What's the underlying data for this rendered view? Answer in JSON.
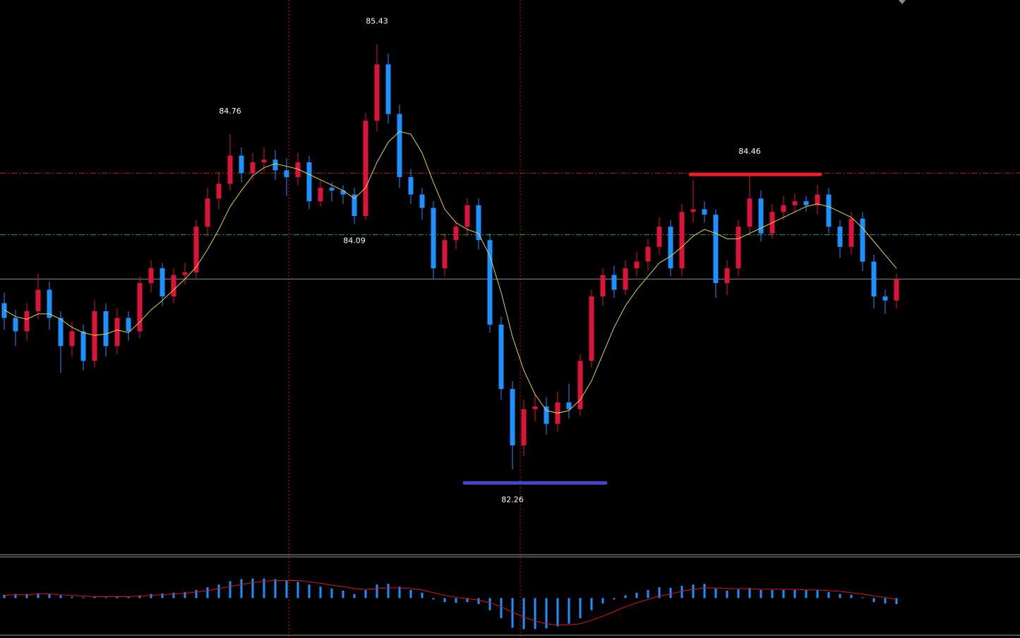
{
  "chart_data": {
    "type": "candlestick",
    "ylim": [
      81.63,
      85.76
    ],
    "bull_color": "#dc143c",
    "bear_color": "#1e90ff",
    "open": [
      83.5,
      83.39,
      83.29,
      83.44,
      83.6,
      83.39,
      83.18,
      83.29,
      83.07,
      83.44,
      83.18,
      83.39,
      83.29,
      83.65,
      83.76,
      83.55,
      83.71,
      83.73,
      84.07,
      84.28,
      84.39,
      84.6,
      84.47,
      84.55,
      84.57,
      84.49,
      84.44,
      84.55,
      84.26,
      84.36,
      84.34,
      84.31,
      84.15,
      84.86,
      85.28,
      84.91,
      84.44,
      84.31,
      84.21,
      83.76,
      83.97,
      84.07,
      84.23,
      83.97,
      83.34,
      82.86,
      82.44,
      82.71,
      82.73,
      82.6,
      82.76,
      82.71,
      83.07,
      83.55,
      83.71,
      83.6,
      83.76,
      83.81,
      83.92,
      84.07,
      83.76,
      84.18,
      84.2,
      84.16,
      83.65,
      83.76,
      84.07,
      84.28,
      84.02,
      84.18,
      84.23,
      84.26,
      84.23,
      84.31,
      84.07,
      83.92,
      84.13,
      83.81,
      83.55,
      83.52
    ],
    "high": [
      83.58,
      83.45,
      83.5,
      83.72,
      83.66,
      83.44,
      83.36,
      83.34,
      83.52,
      83.5,
      83.46,
      83.44,
      83.7,
      83.82,
      83.8,
      83.76,
      83.8,
      84.12,
      84.36,
      84.48,
      84.76,
      84.66,
      84.62,
      84.66,
      84.64,
      84.58,
      84.62,
      84.6,
      84.42,
      84.4,
      84.38,
      84.36,
      84.92,
      85.43,
      85.36,
      84.98,
      84.5,
      84.36,
      84.26,
      84.02,
      84.12,
      84.28,
      84.28,
      84.02,
      83.4,
      82.92,
      82.78,
      82.82,
      82.8,
      82.84,
      82.9,
      83.12,
      83.6,
      83.76,
      83.78,
      83.82,
      83.88,
      83.98,
      84.14,
      84.12,
      84.24,
      84.42,
      84.26,
      84.2,
      83.82,
      84.12,
      84.46,
      84.34,
      84.24,
      84.3,
      84.32,
      84.3,
      84.38,
      84.36,
      84.12,
      84.18,
      84.18,
      83.86,
      83.6,
      83.72
    ],
    "low": [
      83.3,
      83.18,
      83.22,
      83.38,
      83.3,
      82.98,
      83.1,
      83.0,
      83.02,
      83.1,
      83.12,
      83.22,
      83.24,
      83.58,
      83.48,
      83.5,
      83.64,
      83.68,
      84.0,
      84.2,
      84.34,
      84.4,
      84.42,
      84.48,
      84.42,
      84.3,
      84.38,
      84.2,
      84.22,
      84.26,
      84.24,
      84.09,
      84.12,
      84.78,
      84.84,
      84.36,
      84.24,
      84.12,
      83.68,
      83.7,
      83.9,
      84.0,
      83.9,
      83.28,
      82.78,
      82.26,
      82.36,
      82.62,
      82.52,
      82.54,
      82.64,
      82.66,
      83.02,
      83.48,
      83.54,
      83.56,
      83.7,
      83.74,
      83.86,
      83.7,
      83.7,
      84.1,
      84.1,
      83.54,
      83.56,
      83.7,
      84.02,
      83.96,
      83.98,
      84.12,
      84.18,
      84.18,
      84.16,
      84.02,
      83.84,
      83.86,
      83.74,
      83.46,
      83.42,
      83.46
    ],
    "close": [
      83.39,
      83.29,
      83.44,
      83.6,
      83.39,
      83.18,
      83.29,
      83.07,
      83.44,
      83.18,
      83.39,
      83.29,
      83.65,
      83.76,
      83.55,
      83.71,
      83.73,
      84.07,
      84.28,
      84.39,
      84.6,
      84.47,
      84.55,
      84.57,
      84.49,
      84.44,
      84.55,
      84.26,
      84.36,
      84.34,
      84.31,
      84.15,
      84.86,
      85.28,
      84.91,
      84.44,
      84.31,
      84.21,
      83.76,
      83.97,
      84.07,
      84.23,
      83.97,
      83.34,
      82.86,
      82.44,
      82.71,
      82.73,
      82.6,
      82.76,
      82.71,
      83.07,
      83.55,
      83.71,
      83.6,
      83.76,
      83.81,
      83.92,
      84.07,
      83.76,
      84.18,
      84.2,
      84.16,
      83.65,
      83.76,
      84.07,
      84.28,
      84.02,
      84.18,
      84.23,
      84.26,
      84.23,
      84.31,
      84.07,
      83.92,
      84.13,
      83.81,
      83.55,
      83.52,
      83.68
    ],
    "ma": {
      "color": "#e6d23c",
      "values": [
        83.45,
        83.4,
        83.38,
        83.42,
        83.42,
        83.38,
        83.32,
        83.28,
        83.26,
        83.27,
        83.3,
        83.28,
        83.36,
        83.45,
        83.52,
        83.6,
        83.68,
        83.77,
        83.9,
        84.05,
        84.22,
        84.34,
        84.45,
        84.51,
        84.54,
        84.52,
        84.5,
        84.46,
        84.42,
        84.38,
        84.34,
        84.28,
        84.36,
        84.55,
        84.7,
        84.78,
        84.76,
        84.62,
        84.4,
        84.2,
        84.1,
        84.05,
        84.02,
        83.85,
        83.58,
        83.25,
        83.0,
        82.82,
        82.7,
        82.68,
        82.7,
        82.78,
        82.92,
        83.12,
        83.32,
        83.48,
        83.6,
        83.7,
        83.8,
        83.85,
        83.92,
        84.0,
        84.05,
        84.02,
        83.98,
        83.98,
        84.02,
        84.06,
        84.1,
        84.14,
        84.18,
        84.22,
        84.24,
        84.22,
        84.18,
        84.14,
        84.06,
        83.96,
        83.86,
        83.76
      ]
    },
    "levels": [
      {
        "value": 84.47,
        "color": "#d01a1a",
        "style": "dashdot"
      },
      {
        "value": 84.01,
        "color": "#2eaa2e",
        "style": "dashdot"
      },
      {
        "value": 83.68,
        "color": "#8a8a8a",
        "style": "solid"
      }
    ],
    "zones": [
      {
        "value": 84.46,
        "from": 61,
        "to": 72,
        "color": "#ee1c24"
      },
      {
        "value": 82.16,
        "from": 41,
        "to": 53,
        "color": "#4646c8"
      }
    ],
    "annotations": {
      "above": [
        85.43,
        84.76,
        84.46
      ],
      "below": [
        84.09,
        82.26
      ]
    },
    "macd": {
      "ylim": [
        -0.55,
        0.6
      ],
      "histogram": {
        "color": "#1e90ff",
        "values": [
          0.05,
          0.06,
          0.06,
          0.07,
          0.06,
          0.04,
          0.02,
          0.01,
          0.02,
          0.01,
          0.02,
          0.02,
          0.04,
          0.06,
          0.07,
          0.08,
          0.09,
          0.12,
          0.16,
          0.2,
          0.25,
          0.28,
          0.29,
          0.29,
          0.28,
          0.26,
          0.24,
          0.2,
          0.17,
          0.14,
          0.11,
          0.06,
          0.12,
          0.2,
          0.21,
          0.17,
          0.12,
          0.08,
          -0.02,
          -0.06,
          -0.07,
          -0.06,
          -0.09,
          -0.18,
          -0.3,
          -0.44,
          -0.46,
          -0.46,
          -0.45,
          -0.42,
          -0.38,
          -0.3,
          -0.18,
          -0.08,
          -0.02,
          0.04,
          0.08,
          0.12,
          0.16,
          0.15,
          0.18,
          0.2,
          0.21,
          0.14,
          0.11,
          0.13,
          0.15,
          0.12,
          0.12,
          0.12,
          0.12,
          0.12,
          0.12,
          0.09,
          0.06,
          0.05,
          0.01,
          -0.06,
          -0.08,
          -0.09
        ]
      },
      "signal": {
        "color": "#e0101c",
        "values": [
          0.04,
          0.05,
          0.05,
          0.06,
          0.06,
          0.05,
          0.04,
          0.03,
          0.02,
          0.02,
          0.02,
          0.02,
          0.03,
          0.04,
          0.05,
          0.06,
          0.07,
          0.09,
          0.11,
          0.14,
          0.17,
          0.2,
          0.23,
          0.25,
          0.26,
          0.26,
          0.26,
          0.24,
          0.22,
          0.19,
          0.17,
          0.14,
          0.13,
          0.14,
          0.15,
          0.15,
          0.14,
          0.12,
          0.08,
          0.04,
          0.01,
          -0.01,
          -0.03,
          -0.07,
          -0.13,
          -0.21,
          -0.28,
          -0.34,
          -0.38,
          -0.4,
          -0.4,
          -0.38,
          -0.33,
          -0.27,
          -0.2,
          -0.13,
          -0.07,
          -0.02,
          0.03,
          0.06,
          0.1,
          0.13,
          0.15,
          0.15,
          0.14,
          0.14,
          0.14,
          0.13,
          0.13,
          0.13,
          0.13,
          0.12,
          0.12,
          0.11,
          0.1,
          0.08,
          0.06,
          0.03,
          0.01,
          -0.02
        ]
      }
    }
  }
}
